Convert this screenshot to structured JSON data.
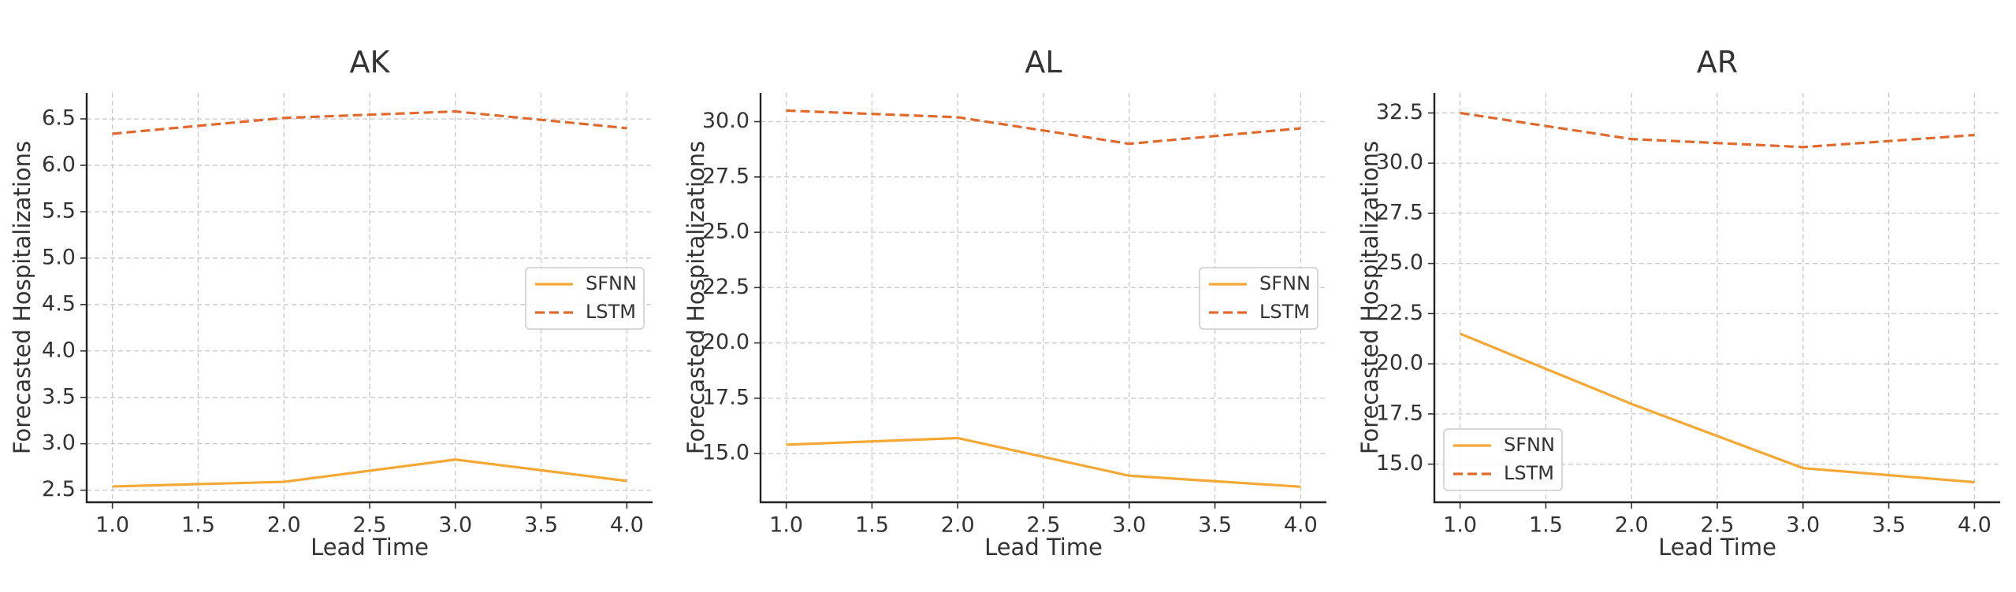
{
  "colors": {
    "SFNN": "#F4A836",
    "LSTM": "#E06A2E"
  },
  "chart_data": [
    {
      "type": "line",
      "title": "AK",
      "xlabel": "Lead Time",
      "ylabel": "Forecasted Hospitalizations",
      "xlim": [
        0.85,
        4.15
      ],
      "ylim": [
        2.37,
        6.78
      ],
      "xticks": [
        1.0,
        1.5,
        2.0,
        2.5,
        3.0,
        3.5,
        4.0
      ],
      "xtick_labels": [
        "1.0",
        "1.5",
        "2.0",
        "2.5",
        "3.0",
        "3.5",
        "4.0"
      ],
      "yticks": [
        2.5,
        3.0,
        3.5,
        4.0,
        4.5,
        5.0,
        5.5,
        6.0,
        6.5
      ],
      "ytick_labels": [
        "2.5",
        "3.0",
        "3.5",
        "4.0",
        "4.5",
        "5.0",
        "5.5",
        "6.0",
        "6.5"
      ],
      "grid": true,
      "legend": "center-right",
      "series": [
        {
          "name": "SFNN",
          "style": "solid",
          "x": [
            1,
            2,
            3,
            4
          ],
          "values": [
            2.54,
            2.59,
            2.83,
            2.6
          ]
        },
        {
          "name": "LSTM",
          "style": "dashed",
          "x": [
            1,
            2,
            3,
            4
          ],
          "values": [
            6.34,
            6.51,
            6.58,
            6.4
          ]
        }
      ]
    },
    {
      "type": "line",
      "title": "AL",
      "xlabel": "Lead Time",
      "ylabel": "Forecasted Hospitalizations",
      "xlim": [
        0.85,
        4.15
      ],
      "ylim": [
        12.8,
        31.3
      ],
      "xticks": [
        1.0,
        1.5,
        2.0,
        2.5,
        3.0,
        3.5,
        4.0
      ],
      "xtick_labels": [
        "1.0",
        "1.5",
        "2.0",
        "2.5",
        "3.0",
        "3.5",
        "4.0"
      ],
      "yticks": [
        15.0,
        17.5,
        20.0,
        22.5,
        25.0,
        27.5,
        30.0
      ],
      "ytick_labels": [
        "15.0",
        "17.5",
        "20.0",
        "22.5",
        "25.0",
        "27.5",
        "30.0"
      ],
      "grid": true,
      "legend": "center-right",
      "series": [
        {
          "name": "SFNN",
          "style": "solid",
          "x": [
            1,
            2,
            3,
            4
          ],
          "values": [
            15.4,
            15.7,
            14.0,
            13.5
          ]
        },
        {
          "name": "LSTM",
          "style": "dashed",
          "x": [
            1,
            2,
            3,
            4
          ],
          "values": [
            30.5,
            30.2,
            29.0,
            29.7
          ]
        }
      ]
    },
    {
      "type": "line",
      "title": "AR",
      "xlabel": "Lead Time",
      "ylabel": "Forecasted Hospitalizations",
      "xlim": [
        0.85,
        4.15
      ],
      "ylim": [
        13.1,
        33.5
      ],
      "xticks": [
        1.0,
        1.5,
        2.0,
        2.5,
        3.0,
        3.5,
        4.0
      ],
      "xtick_labels": [
        "1.0",
        "1.5",
        "2.0",
        "2.5",
        "3.0",
        "3.5",
        "4.0"
      ],
      "yticks": [
        15.0,
        17.5,
        20.0,
        22.5,
        25.0,
        27.5,
        30.0,
        32.5
      ],
      "ytick_labels": [
        "15.0",
        "17.5",
        "20.0",
        "22.5",
        "25.0",
        "27.5",
        "30.0",
        "32.5"
      ],
      "grid": true,
      "legend": "lower-left",
      "series": [
        {
          "name": "SFNN",
          "style": "solid",
          "x": [
            1,
            2,
            3,
            4
          ],
          "values": [
            21.5,
            18.0,
            14.8,
            14.1
          ]
        },
        {
          "name": "LSTM",
          "style": "dashed",
          "x": [
            1,
            2,
            3,
            4
          ],
          "values": [
            32.5,
            31.2,
            30.8,
            31.4
          ]
        }
      ]
    }
  ]
}
